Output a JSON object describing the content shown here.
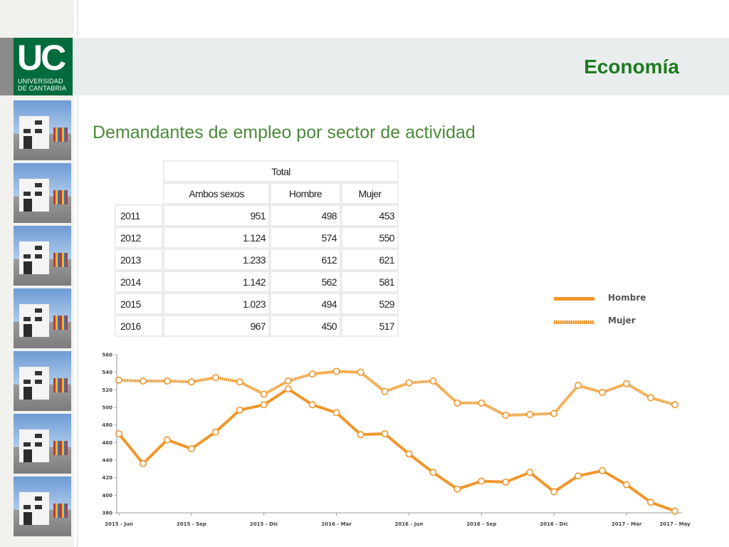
{
  "header": {
    "title": "Economía",
    "logo_text": "UC",
    "logo_line1": "UNIVERSIDAD",
    "logo_line2": "DE CANTABRIA"
  },
  "slide": {
    "subtitle": "Demandantes de empleo por sector de actividad"
  },
  "table": {
    "group_header": "Total",
    "columns": [
      "Ambos sexos",
      "Hombre",
      "Mujer"
    ],
    "rows": [
      {
        "year": "2011",
        "ambos": "951",
        "hombre": "498",
        "mujer": "453"
      },
      {
        "year": "2012",
        "ambos": "1.124",
        "hombre": "574",
        "mujer": "550"
      },
      {
        "year": "2013",
        "ambos": "1.233",
        "hombre": "612",
        "mujer": "621"
      },
      {
        "year": "2014",
        "ambos": "1.142",
        "hombre": "562",
        "mujer": "581"
      },
      {
        "year": "2015",
        "ambos": "1.023",
        "hombre": "494",
        "mujer": "529"
      },
      {
        "year": "2016",
        "ambos": "967",
        "hombre": "450",
        "mujer": "517"
      }
    ]
  },
  "legend": {
    "hombre": "Hombre",
    "mujer": "Mujer"
  },
  "colors": {
    "series": "#f0962a",
    "marker_fill": "#ffffff",
    "title": "#1c7a1f",
    "subtitle": "#4b8a3a",
    "logo": "#006b3c"
  },
  "chart_data": {
    "type": "line",
    "ylim": [
      380,
      560
    ],
    "yticks": [
      380,
      400,
      420,
      440,
      460,
      480,
      500,
      520,
      540,
      560
    ],
    "x_tick_labels": [
      "2015 - Jun",
      "2015 - Sep",
      "2015 - Dic",
      "2016 - Mar",
      "2016 - Jun",
      "2016 - Sep",
      "2016 - Dic",
      "2017 - Mar",
      "2017 - May"
    ],
    "x_tick_positions": [
      0,
      3,
      6,
      9,
      12,
      15,
      18,
      21,
      23
    ],
    "n_points": 24,
    "series": [
      {
        "name": "Hombre",
        "style": "solid",
        "values": [
          470,
          436,
          463,
          453,
          472,
          497,
          503,
          521,
          503,
          494,
          469,
          470,
          447,
          426,
          407,
          416,
          415,
          426,
          404,
          422,
          428,
          412,
          392,
          382
        ]
      },
      {
        "name": "Mujer",
        "style": "dotted",
        "values": [
          531,
          530,
          530,
          529,
          534,
          529,
          515,
          530,
          538,
          541,
          540,
          518,
          528,
          530,
          505,
          505,
          491,
          492,
          493,
          525,
          517,
          527,
          511,
          503
        ]
      }
    ],
    "grid": false,
    "legend_position": "right"
  }
}
